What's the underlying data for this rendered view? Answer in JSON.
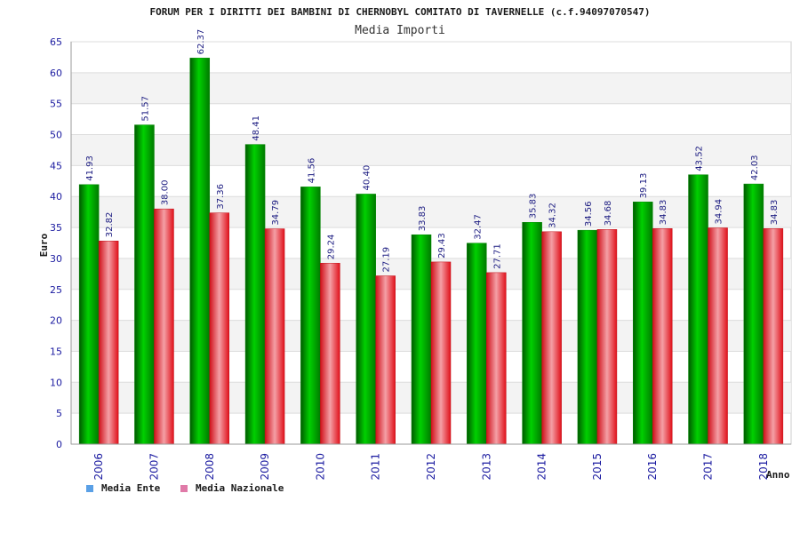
{
  "chart_data": {
    "type": "bar",
    "title": "FORUM PER I DIRITTI DEI BAMBINI DI CHERNOBYL COMITATO DI TAVERNELLE (c.f.94097070547)",
    "subtitle": "Media Importi",
    "xlabel": "Anno",
    "ylabel": "Euro",
    "ylim": [
      0,
      65
    ],
    "yticks": [
      0,
      5,
      10,
      15,
      20,
      25,
      30,
      35,
      40,
      45,
      50,
      55,
      60,
      65
    ],
    "grid": true,
    "legend_position": "bottom-left",
    "categories": [
      "2006",
      "2007",
      "2008",
      "2009",
      "2010",
      "2011",
      "2012",
      "2013",
      "2014",
      "2015",
      "2016",
      "2017",
      "2018"
    ],
    "series": [
      {
        "name": "Media Ente",
        "color": "#00b400",
        "legend_color": "#5aa0e6",
        "values": [
          41.93,
          51.57,
          62.37,
          48.41,
          41.56,
          40.4,
          33.83,
          32.47,
          35.83,
          34.56,
          39.13,
          43.52,
          42.03
        ],
        "labels": [
          "41.93",
          "51.57",
          "62.37",
          "48.41",
          "41.56",
          "40.40",
          "33.83",
          "32.47",
          "35.83",
          "34.56",
          "39.13",
          "43.52",
          "42.03"
        ]
      },
      {
        "name": "Media Nazionale",
        "color": "#e0202a",
        "legend_color": "#e07aa8",
        "values": [
          32.82,
          38.0,
          37.36,
          34.79,
          29.24,
          27.19,
          29.43,
          27.71,
          34.32,
          34.68,
          34.83,
          34.94,
          34.83
        ],
        "labels": [
          "32.82",
          "38.00",
          "37.36",
          "34.79",
          "29.24",
          "27.19",
          "29.43",
          "27.71",
          "34.32",
          "34.68",
          "34.83",
          "34.94",
          "34.83"
        ]
      }
    ]
  }
}
